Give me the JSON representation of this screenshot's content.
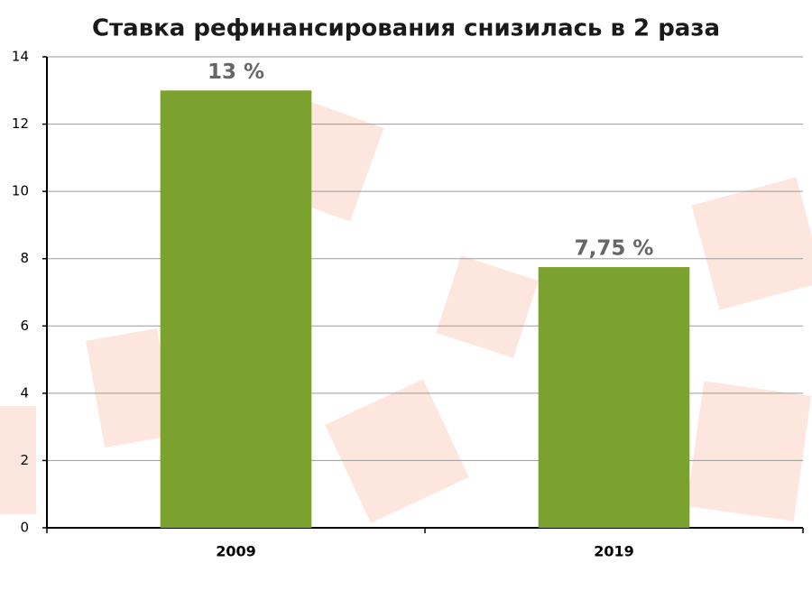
{
  "chart_data": {
    "type": "bar",
    "title": "Ставка рефинансирования снизилась в 2 раза",
    "categories": [
      "2009",
      "2019"
    ],
    "values": [
      13,
      7.75
    ],
    "value_labels": [
      "13 %",
      "7,75 %"
    ],
    "color": "#7ba12f",
    "ylim": [
      0,
      14
    ],
    "yticks": [
      0,
      2,
      4,
      6,
      8,
      10,
      12,
      14
    ],
    "grid": true
  }
}
